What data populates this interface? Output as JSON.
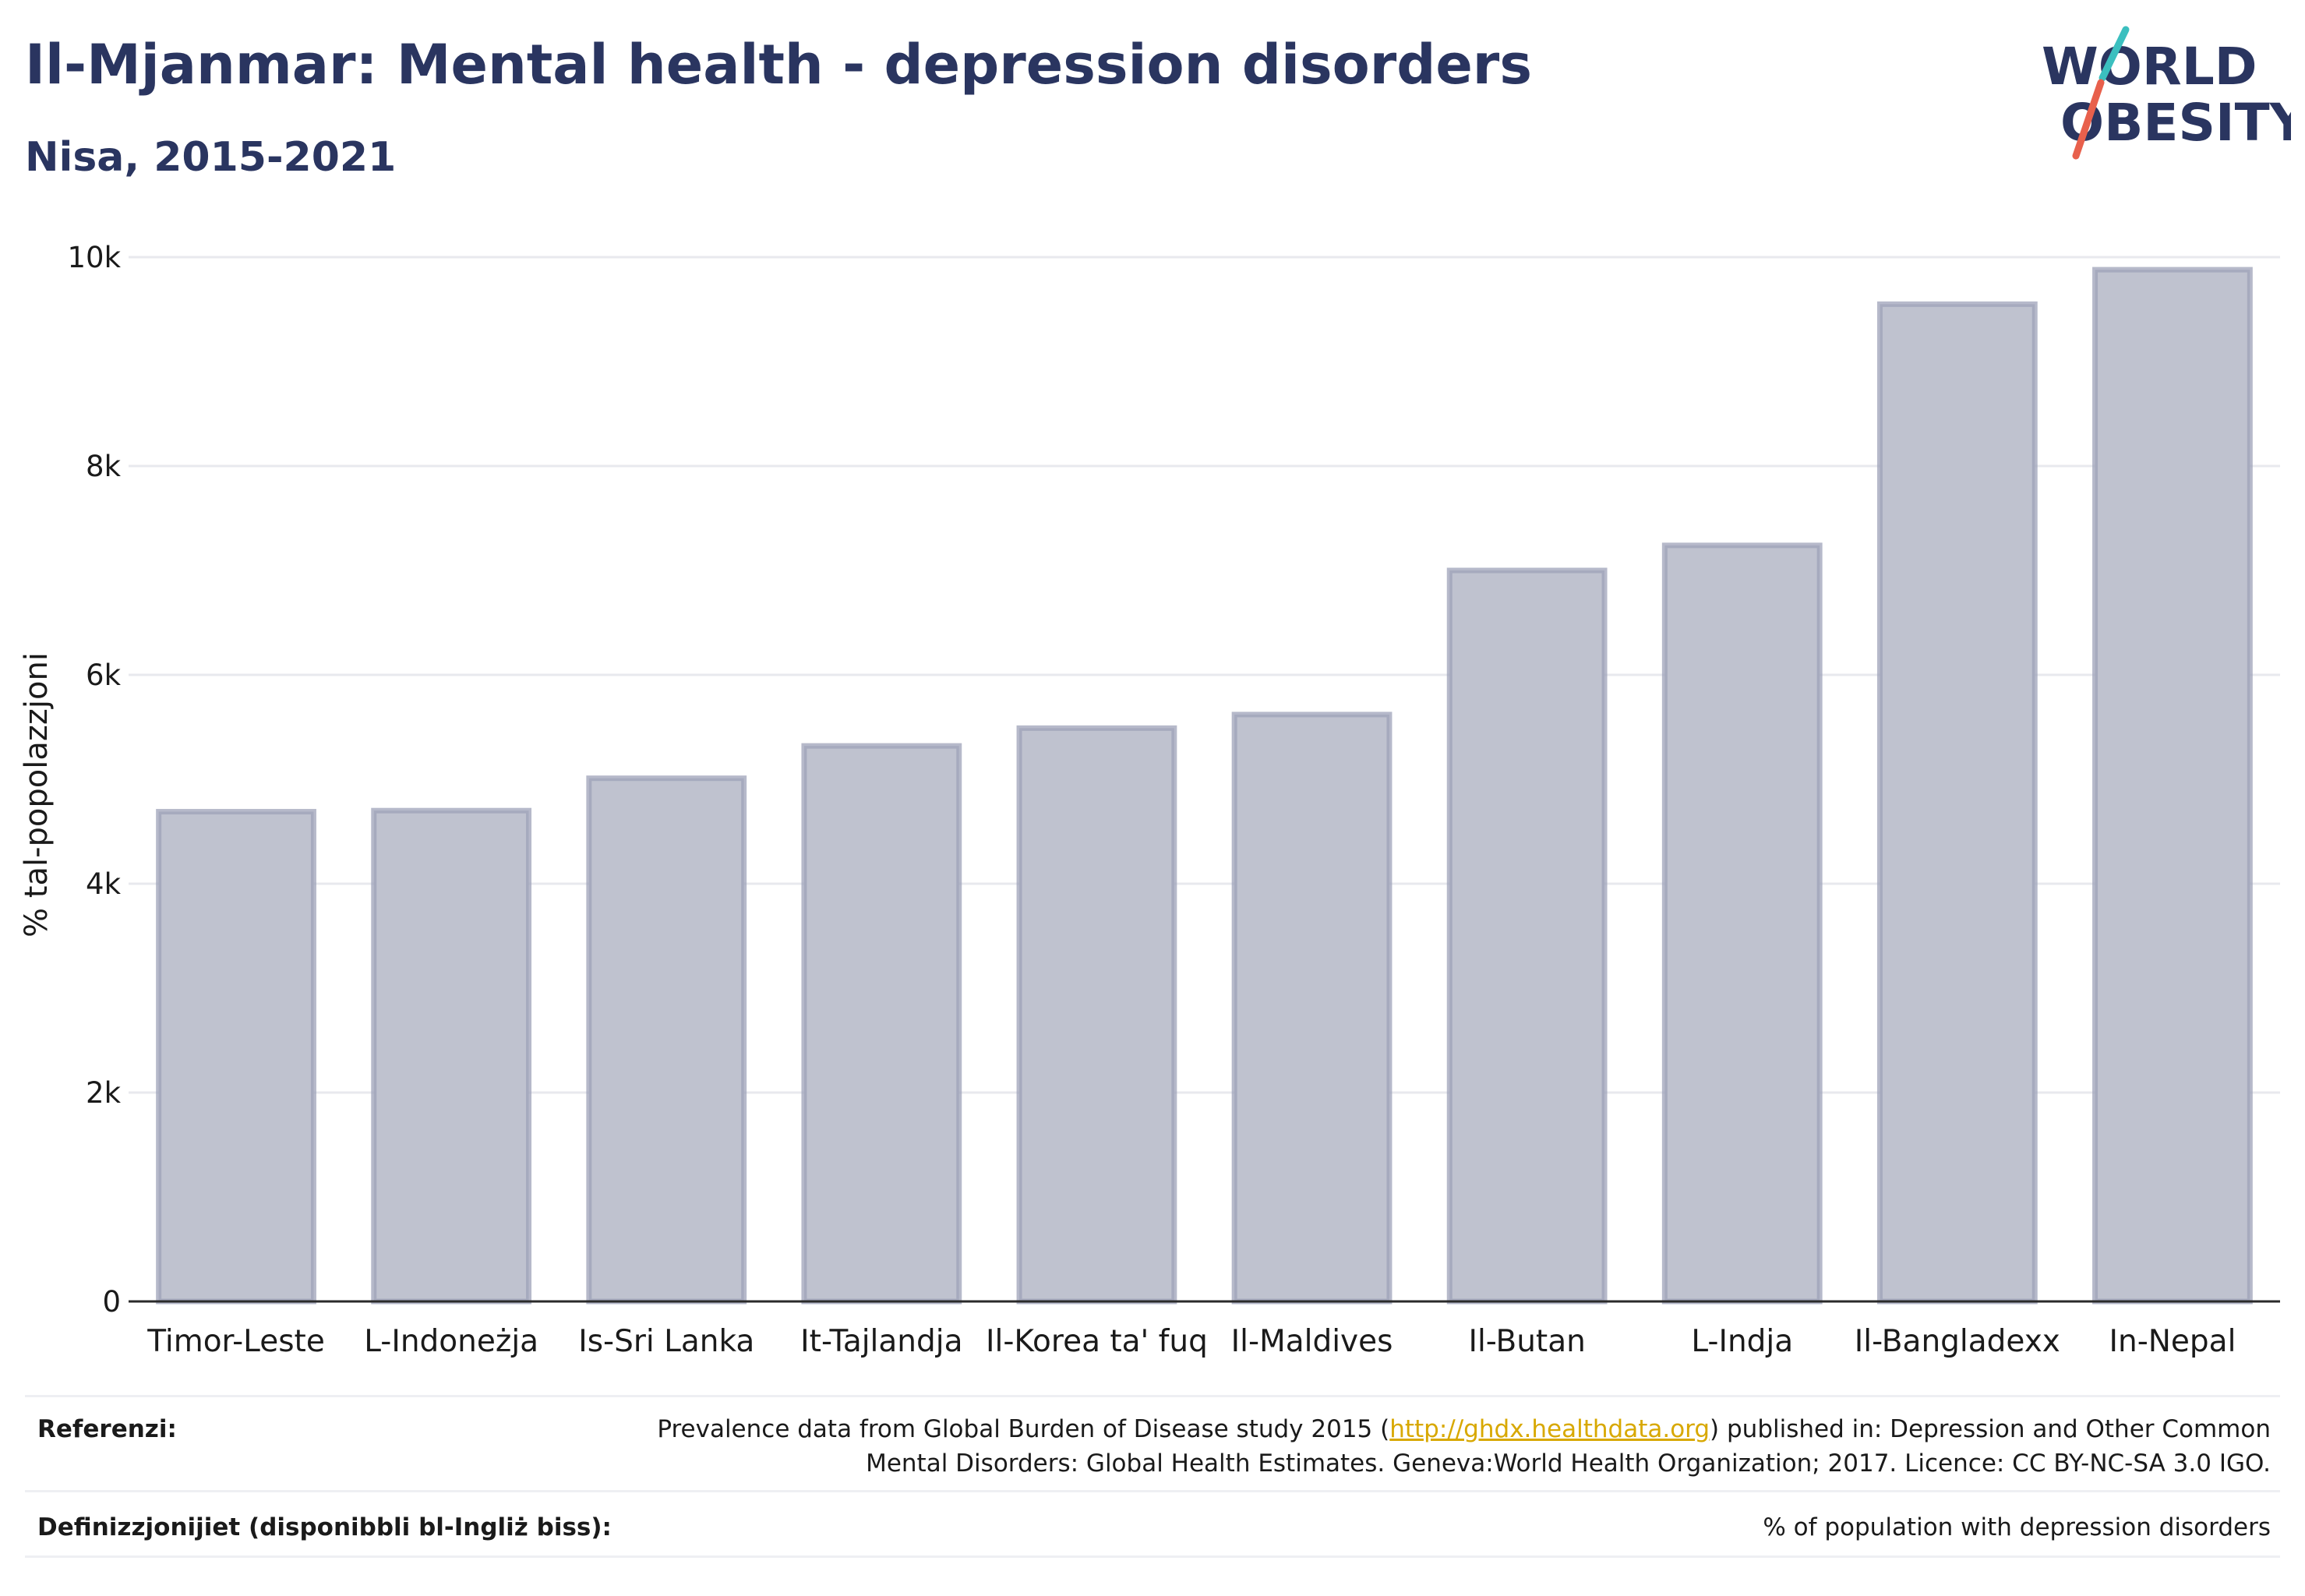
{
  "header": {
    "title": "Il-Mjanmar: Mental health - depression disorders",
    "subtitle": "Nisa, 2015-2021"
  },
  "logo": {
    "line1": "WORLD",
    "line2": "OBESITY",
    "accent_colors": [
      "#3bbfbf",
      "#e8604c"
    ],
    "text_color": "#2a3560"
  },
  "chart_data": {
    "type": "bar",
    "title": "Il-Mjanmar: Mental health - depression disorders",
    "subtitle": "Nisa, 2015-2021",
    "ylabel": "% tal-popolazzjoni",
    "xlabel": "",
    "ylim": [
      0,
      10000
    ],
    "yticks": [
      0,
      2000,
      4000,
      6000,
      8000,
      10000
    ],
    "ytick_labels": [
      "0",
      "2k",
      "4k",
      "6k",
      "8k",
      "10k"
    ],
    "categories": [
      "Timor-Leste",
      "L-Indoneżja",
      "Is-Sri Lanka",
      "It-Tajlandja",
      "Il-Korea ta' fuq",
      "Il-Maldives",
      "Il-Butan",
      "L-Indja",
      "Il-Bangladexx",
      "In-Nepal"
    ],
    "values": [
      4690,
      4700,
      5010,
      5320,
      5490,
      5620,
      7000,
      7240,
      9550,
      9880
    ],
    "bar_fill": "#bfc2cf",
    "bar_stroke": "#9da2b8",
    "grid": true
  },
  "footer": {
    "references_label": "Referenzi:",
    "references_text_1a": "Prevalence data from Global Burden of Disease study 2015 (",
    "references_link": "http://ghdx.healthdata.org",
    "references_text_1b": ") published in: Depression and Other Common",
    "references_text_2": "Mental Disorders: Global Health Estimates. Geneva:World Health Organization; 2017. Licence: CC BY-NC-SA 3.0 IGO.",
    "definitions_label": "Definizzjonijiet (disponibbli bl-Ingliż biss):",
    "definitions_text": "% of population with depression disorders"
  }
}
